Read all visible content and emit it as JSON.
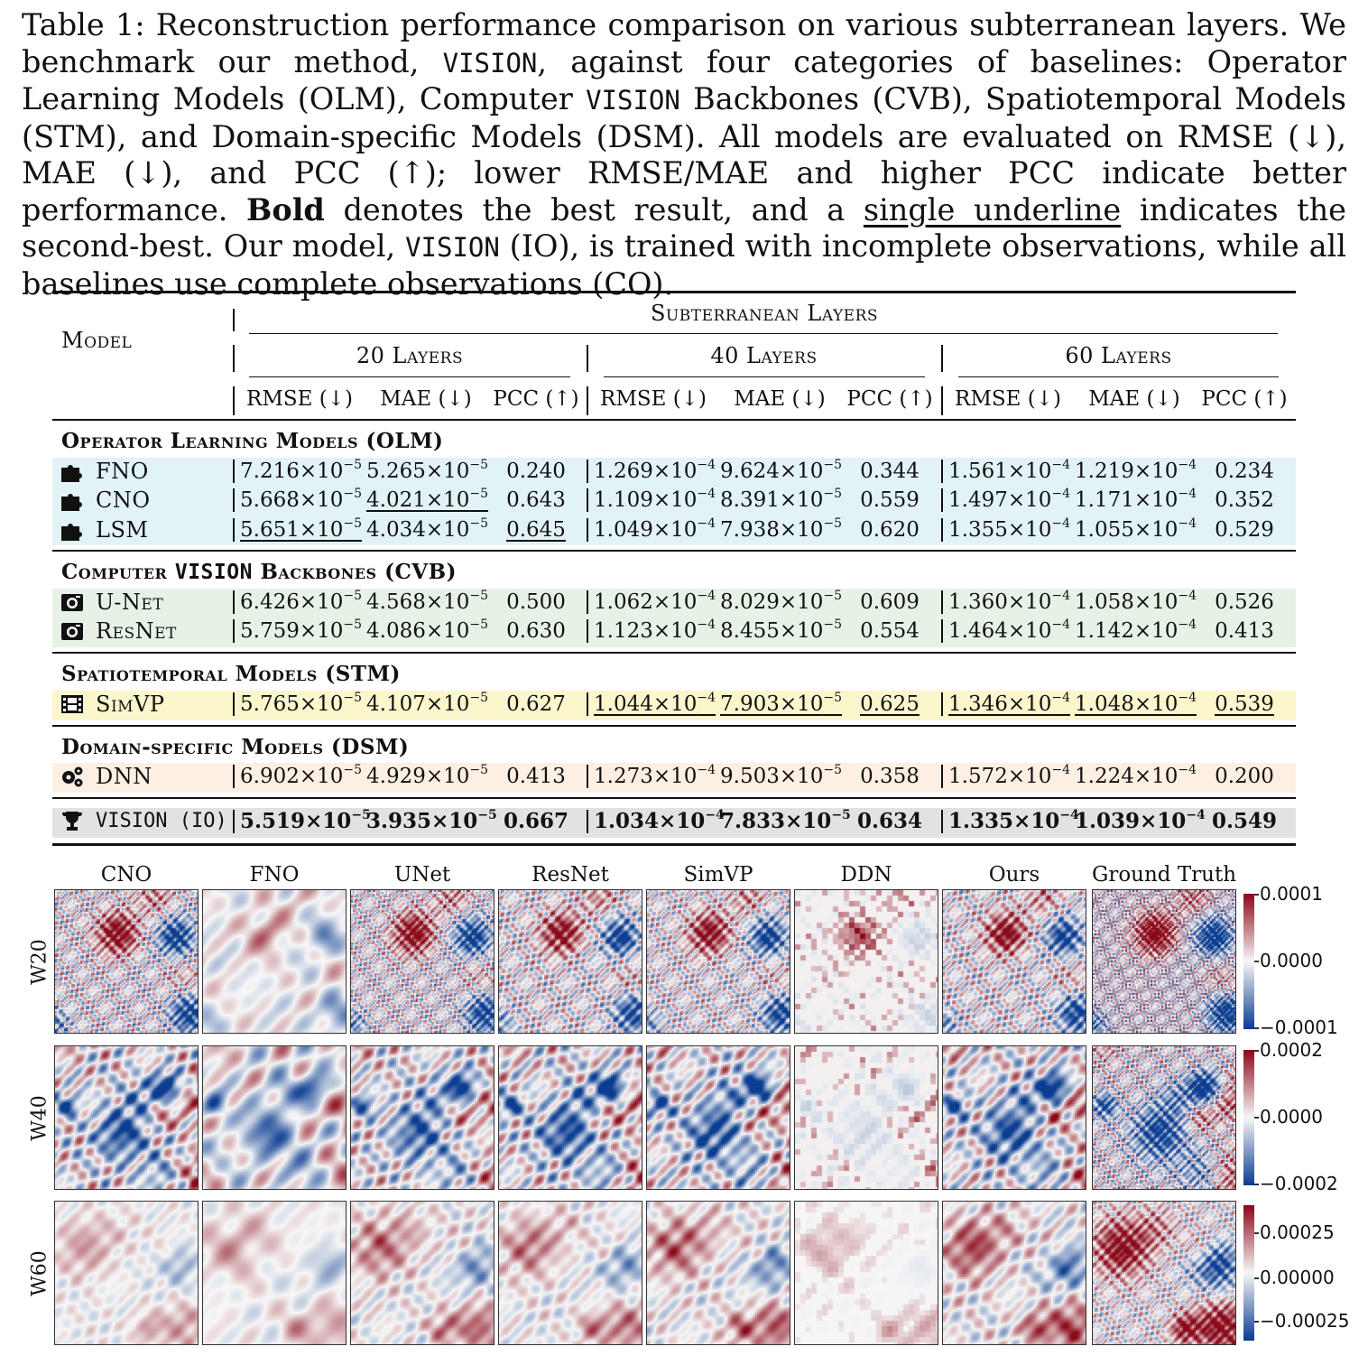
{
  "caption": {
    "p1": "Table 1: Reconstruction performance comparison on various subterranean layers. We benchmark our method, ",
    "m1": "VISION",
    "p2": ", against four categories of baselines: Operator Learning Models (OLM), Computer ",
    "m2": "VISION",
    "p3": " Backbones (CVB), Spatiotemporal Models (STM), and Domain-specific Models (DSM). All models are evaluated on RMSE (↓), MAE (↓), and PCC (↑); lower RMSE/MAE and higher PCC indicate better performance. ",
    "b1": "Bold",
    "p4": " denotes the best result, and a ",
    "u1": "single underline",
    "p5": " indicates the second-best. Our model, ",
    "m3": "VISION",
    "p6": " (IO), is trained with incomplete observations, while all baselines use complete observations (CO)."
  },
  "table": {
    "model_header": "Model",
    "super_header": "Subterranean Layers",
    "groups": [
      "20 Layers",
      "40 Layers",
      "60 Layers"
    ],
    "metrics": [
      "RMSE (↓)",
      "MAE (↓)",
      "PCC (↑)",
      "RMSE (↓)",
      "MAE (↓)",
      "PCC (↑)",
      "RMSE (↓)",
      "MAE (↓)",
      "PCC (↑)"
    ],
    "sections": {
      "olm": "Operator Learning Models (OLM)",
      "cvb_a": "Computer ",
      "cvb_b": "VISION",
      "cvb_c": " Backbones (CVB)",
      "stm": "Spatiotemporal Models (STM)",
      "dsm": "Domain-specific Models (DSM)"
    },
    "rows": [
      {
        "name": "FNO",
        "icon": "puzzle-icon",
        "cells": [
          [
            "7.216",
            "-5"
          ],
          [
            "5.265",
            "-5"
          ],
          [
            "0.240"
          ],
          [
            "1.269",
            "-4"
          ],
          [
            "9.624",
            "-5"
          ],
          [
            "0.344"
          ],
          [
            "1.561",
            "-4"
          ],
          [
            "1.219",
            "-4"
          ],
          [
            "0.234"
          ]
        ]
      },
      {
        "name": "CNO",
        "icon": "puzzle-icon",
        "cells": [
          [
            "5.668",
            "-5"
          ],
          [
            "4.021",
            "-5"
          ],
          [
            "0.643"
          ],
          [
            "1.109",
            "-4"
          ],
          [
            "8.391",
            "-5"
          ],
          [
            "0.559"
          ],
          [
            "1.497",
            "-4"
          ],
          [
            "1.171",
            "-4"
          ],
          [
            "0.352"
          ]
        ]
      },
      {
        "name": "LSM",
        "icon": "puzzle-icon",
        "cells": [
          [
            "5.651",
            "-5"
          ],
          [
            "4.034",
            "-5"
          ],
          [
            "0.645"
          ],
          [
            "1.049",
            "-4"
          ],
          [
            "7.938",
            "-5"
          ],
          [
            "0.620"
          ],
          [
            "1.355",
            "-4"
          ],
          [
            "1.055",
            "-4"
          ],
          [
            "0.529"
          ]
        ]
      },
      {
        "name": "U-Net",
        "icon": "camera-icon",
        "cells": [
          [
            "6.426",
            "-5"
          ],
          [
            "4.568",
            "-5"
          ],
          [
            "0.500"
          ],
          [
            "1.062",
            "-4"
          ],
          [
            "8.029",
            "-5"
          ],
          [
            "0.609"
          ],
          [
            "1.360",
            "-4"
          ],
          [
            "1.058",
            "-4"
          ],
          [
            "0.526"
          ]
        ]
      },
      {
        "name": "ResNet",
        "icon": "camera-icon",
        "cells": [
          [
            "5.759",
            "-5"
          ],
          [
            "4.086",
            "-5"
          ],
          [
            "0.630"
          ],
          [
            "1.123",
            "-4"
          ],
          [
            "8.455",
            "-5"
          ],
          [
            "0.554"
          ],
          [
            "1.464",
            "-4"
          ],
          [
            "1.142",
            "-4"
          ],
          [
            "0.413"
          ]
        ]
      },
      {
        "name": "SimVP",
        "icon": "film-icon",
        "cells": [
          [
            "5.765",
            "-5"
          ],
          [
            "4.107",
            "-5"
          ],
          [
            "0.627"
          ],
          [
            "1.044",
            "-4"
          ],
          [
            "7.903",
            "-5"
          ],
          [
            "0.625"
          ],
          [
            "1.346",
            "-4"
          ],
          [
            "1.048",
            "-4"
          ],
          [
            "0.539"
          ]
        ]
      },
      {
        "name": "DNN",
        "icon": "gears-icon",
        "cells": [
          [
            "6.902",
            "-5"
          ],
          [
            "4.929",
            "-5"
          ],
          [
            "0.413"
          ],
          [
            "1.273",
            "-4"
          ],
          [
            "9.503",
            "-5"
          ],
          [
            "0.358"
          ],
          [
            "1.572",
            "-4"
          ],
          [
            "1.224",
            "-4"
          ],
          [
            "0.200"
          ]
        ]
      },
      {
        "name": "VISION (IO)",
        "icon": "trophy-icon",
        "cells": [
          [
            "5.519",
            "-5"
          ],
          [
            "3.935",
            "-5"
          ],
          [
            "0.667"
          ],
          [
            "1.034",
            "-4"
          ],
          [
            "7.833",
            "-5"
          ],
          [
            "0.634"
          ],
          [
            "1.335",
            "-4"
          ],
          [
            "1.039",
            "-4"
          ],
          [
            "0.549"
          ]
        ]
      }
    ],
    "colors": {
      "olm": "#e2f3f8",
      "cvb": "#e7f2e6",
      "stm": "#fcf6cc",
      "dsm": "#fdf0e2",
      "ours": "#e2e2e2"
    }
  },
  "figure": {
    "columns": [
      "CNO",
      "FNO",
      "UNet",
      "ResNet",
      "SimVP",
      "DDN",
      "Ours",
      "Ground Truth"
    ],
    "rows": [
      "W20",
      "W40",
      "W60"
    ],
    "colorbars": [
      [
        "0.0001",
        "0.0000",
        "−0.0001"
      ],
      [
        "0.0002",
        "0.0000",
        "−0.0002"
      ],
      [
        "0.00025",
        "0.00000",
        "−0.00025"
      ]
    ],
    "cmap": {
      "low": "#0b3d91",
      "mid": "#f7f7f7",
      "high": "#8b0a1a"
    }
  }
}
